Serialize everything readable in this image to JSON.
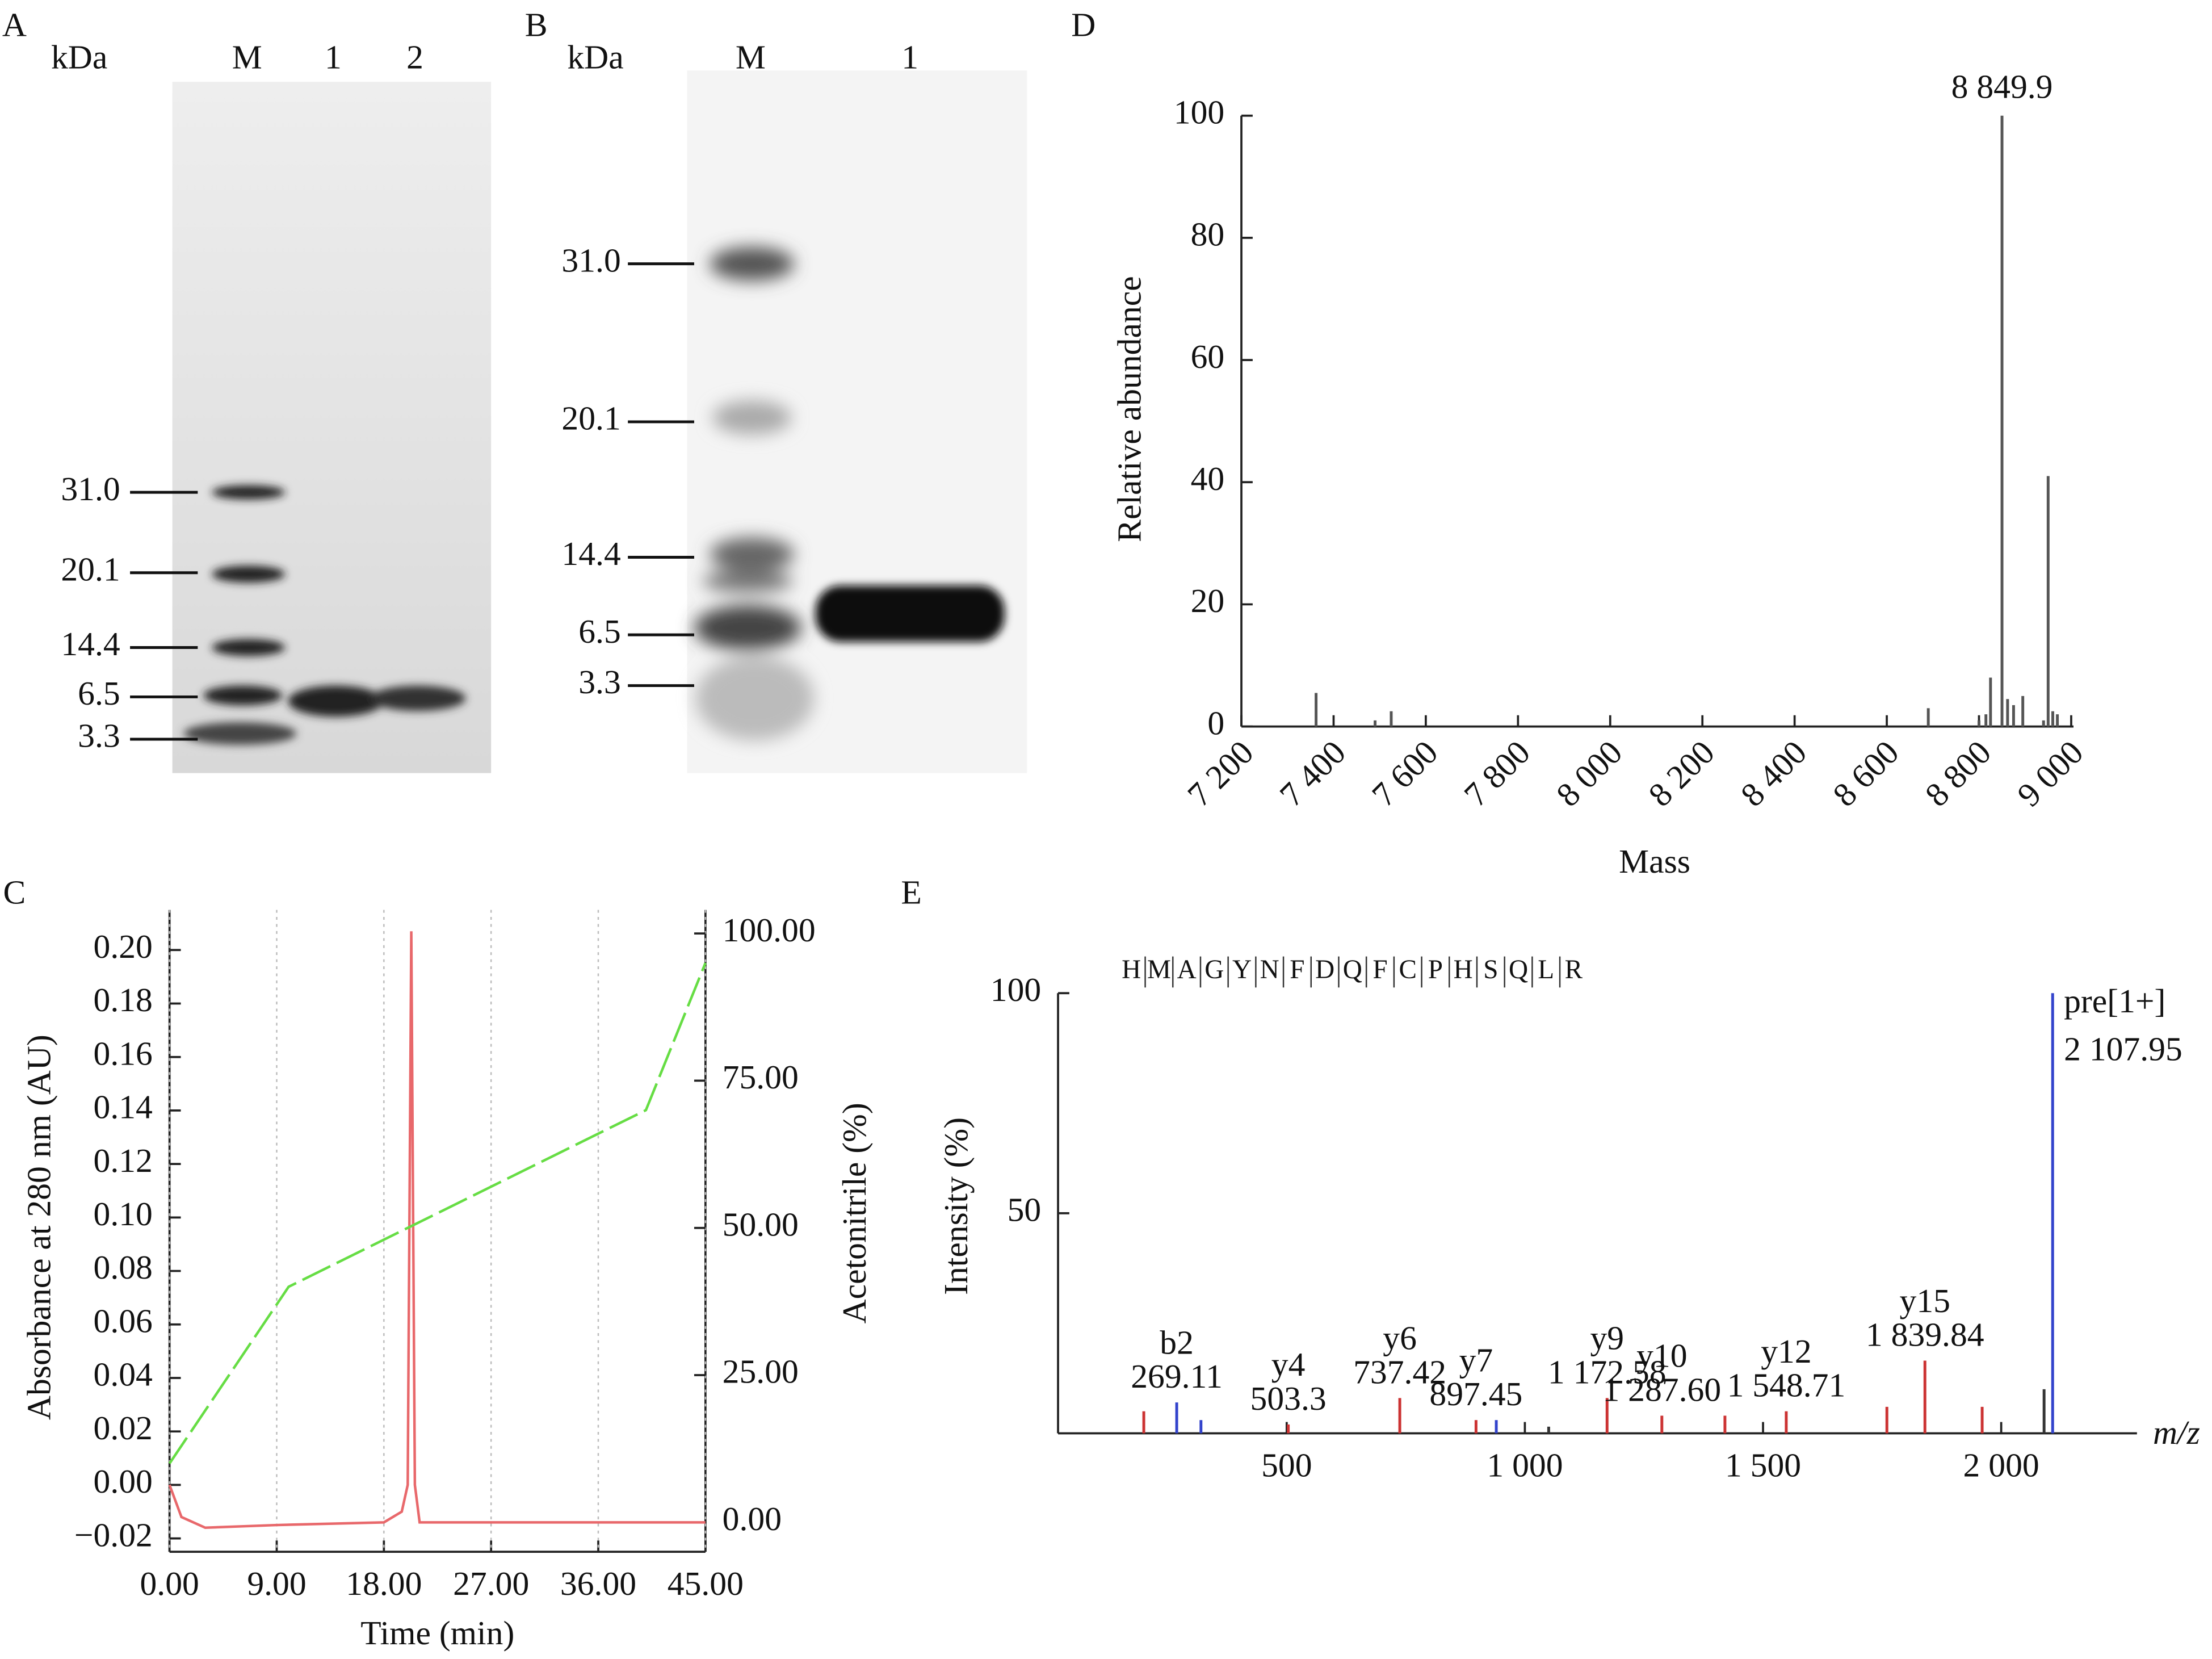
{
  "gels": [
    {
      "panel": "A",
      "unit": "kDa",
      "lanes": [
        "M",
        "1",
        "2"
      ],
      "markers": [
        "31.0",
        "20.1",
        "14.4",
        "6.5",
        "3.3"
      ]
    },
    {
      "panel": "B",
      "unit": "kDa",
      "lanes": [
        "M",
        "1"
      ],
      "markers": [
        "31.0",
        "20.1",
        "14.4",
        "6.5",
        "3.3"
      ]
    }
  ],
  "chart_data": [
    {
      "panel": "C",
      "type": "line",
      "xlabel": "Time (min)",
      "ylabel": "Absorbance at 280 nm (AU)",
      "y2label": "Acetonitrile (%)",
      "grid": true,
      "xlim": [
        0,
        45
      ],
      "xticks": [
        {
          "value": 0,
          "label": "0.00"
        },
        {
          "value": 9,
          "label": "9.00"
        },
        {
          "value": 18,
          "label": "18.00"
        },
        {
          "value": 27,
          "label": "27.00"
        },
        {
          "value": 36,
          "label": "36.00"
        },
        {
          "value": 45,
          "label": "45.00"
        }
      ],
      "ylim": [
        -0.025,
        0.215
      ],
      "yticks": [
        {
          "value": -0.02,
          "label": "−0.02"
        },
        {
          "value": 0,
          "label": "0.00"
        },
        0.02,
        0.04,
        0.06,
        0.08,
        {
          "value": 0.1,
          "label": "0.10"
        },
        0.12,
        0.14,
        0.16,
        0.18,
        {
          "value": 0.2,
          "label": "0.20"
        }
      ],
      "y2lim": [
        -5,
        104
      ],
      "y2ticks": [
        {
          "value": 0,
          "label": "0.00"
        },
        {
          "value": 25,
          "label": "25.00"
        },
        {
          "value": 50,
          "label": "50.00"
        },
        {
          "value": 75,
          "label": "75.00"
        },
        {
          "value": 100,
          "label": "100.00"
        }
      ],
      "series": [
        {
          "color": "#e8686b",
          "x": [
            0,
            1,
            3,
            9,
            18,
            19.5,
            20,
            20.3,
            20.6,
            21,
            30,
            45
          ],
          "values": [
            0,
            -0.012,
            -0.016,
            -0.015,
            -0.014,
            -0.01,
            0,
            0.207,
            0,
            -0.014,
            -0.014,
            -0.014
          ]
        },
        {
          "color": "#66dd44",
          "axis": "y2",
          "dashed": true,
          "x": [
            0,
            10,
            40,
            45
          ],
          "values": [
            10,
            40,
            70,
            95
          ]
        }
      ]
    },
    {
      "panel": "D",
      "type": "stem",
      "xlabel": "Mass",
      "ylabel": "Relative abundance",
      "annotation": "8 849.9",
      "color": "#555555",
      "xlim": [
        7200,
        9005
      ],
      "xticks": [
        {
          "value": 7200,
          "label": "7 200"
        },
        {
          "value": 7400,
          "label": "7 400"
        },
        {
          "value": 7600,
          "label": "7 600"
        },
        {
          "value": 7800,
          "label": "7 800"
        },
        {
          "value": 8000,
          "label": "8 000"
        },
        {
          "value": 8200,
          "label": "8 200"
        },
        {
          "value": 8400,
          "label": "8 400"
        },
        {
          "value": 8600,
          "label": "8 600"
        },
        {
          "value": 8800,
          "label": "8 800"
        },
        {
          "value": 9000,
          "label": "9 000"
        }
      ],
      "ylim": [
        0,
        100
      ],
      "yticks": [
        0,
        20,
        40,
        60,
        80,
        100
      ],
      "x": [
        7362,
        7490,
        7525,
        8690,
        8800,
        8815,
        8825,
        8849.9,
        8862,
        8875,
        8895,
        8940,
        8950,
        8960,
        8970
      ],
      "values": [
        5.5,
        1,
        2.5,
        3,
        1,
        2,
        8,
        100,
        4.5,
        3.5,
        5,
        1,
        41,
        2.5,
        2
      ]
    },
    {
      "panel": "E",
      "type": "stem",
      "xlabel": "m/z",
      "ylabel": "Intensity (%)",
      "sequence": [
        "H",
        "M",
        "A",
        "G",
        "Y",
        "N",
        "F",
        "D",
        "Q",
        "F",
        "C",
        "P",
        "H",
        "S",
        "Q",
        "L",
        "R"
      ],
      "xlim": [
        20,
        2285
      ],
      "xticks": [
        500,
        {
          "value": 1000,
          "label": "1 000"
        },
        {
          "value": 1500,
          "label": "1 500"
        },
        {
          "value": 2000,
          "label": "2 000"
        }
      ],
      "ylim": [
        0,
        100
      ],
      "yticks": [
        50,
        100
      ],
      "x": [
        200,
        269.11,
        320,
        503.3,
        737.42,
        897.45,
        940,
        1050,
        1172.58,
        1287.6,
        1420,
        1548.71,
        1760,
        1839.84,
        1960,
        2090,
        2107.95
      ],
      "values": [
        5,
        7,
        3,
        2,
        8,
        3,
        3,
        1.5,
        8,
        4,
        4,
        5,
        6,
        16.5,
        6,
        10,
        100
      ],
      "colors": [
        "#cc3333",
        "#3344cc",
        "#3344cc",
        "#cc3333",
        "#cc3333",
        "#cc3333",
        "#3344cc",
        "#333333",
        "#cc3333",
        "#cc3333",
        "#cc3333",
        "#cc3333",
        "#cc3333",
        "#cc3333",
        "#cc3333",
        "#333333",
        "#3344cc"
      ],
      "ions": [
        {
          "name": "b2",
          "mz": 269.11
        },
        {
          "name": "y4",
          "mz": 503.3
        },
        {
          "name": "y6",
          "mz": 737.42
        },
        {
          "name": "y7",
          "mz": 897.45
        },
        {
          "name": "y9",
          "mz": {
            "value": 1172.58,
            "label": "1 172.58"
          }
        },
        {
          "name": "y10",
          "mz": {
            "value": 1287.6,
            "label": "1 287.60"
          }
        },
        {
          "name": "y12",
          "mz": {
            "value": 1548.71,
            "label": "1 548.71"
          }
        },
        {
          "name": "y15",
          "mz": {
            "value": 1839.84,
            "label": "1 839.84"
          }
        },
        {
          "name": "pre[1+]",
          "mz": {
            "value": 2107.95,
            "label": "2 107.95"
          }
        }
      ]
    }
  ]
}
